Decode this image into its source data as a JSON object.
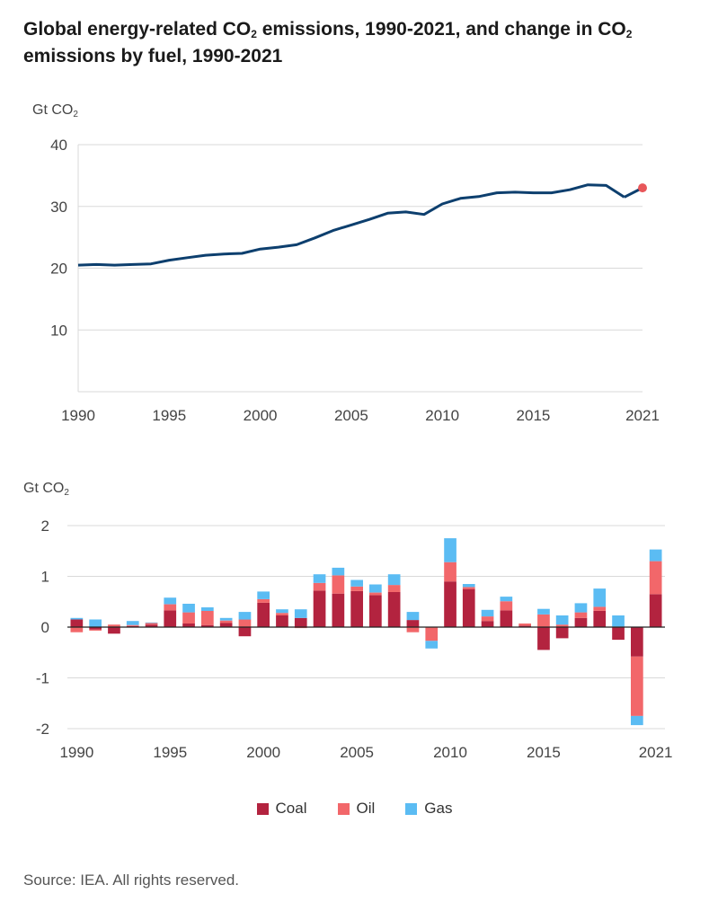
{
  "title_parts": {
    "a": "Global energy-related CO",
    "sub1": "2",
    "b": " emissions, 1990-2021, and change in CO",
    "sub2": "2",
    "c": " emissions by fuel, 1990-2021"
  },
  "source": "Source: IEA. All rights reserved.",
  "colors": {
    "line": "#0d3f6e",
    "point_2021": "#e8575a",
    "coal": "#b3233f",
    "oil": "#f2676a",
    "gas": "#5bbcf3",
    "grid": "#d9d9d9"
  },
  "chart_data": [
    {
      "type": "line",
      "ylabel_main": "Gt CO",
      "ylabel_sub": "2",
      "ylim": [
        0,
        40
      ],
      "yticks": [
        10,
        20,
        30,
        40
      ],
      "xticks": [
        1990,
        1995,
        2000,
        2005,
        2010,
        2015,
        2021
      ],
      "x": [
        1990,
        1991,
        1992,
        1993,
        1994,
        1995,
        1996,
        1997,
        1998,
        1999,
        2000,
        2001,
        2002,
        2003,
        2004,
        2005,
        2006,
        2007,
        2008,
        2009,
        2010,
        2011,
        2012,
        2013,
        2014,
        2015,
        2016,
        2017,
        2018,
        2019,
        2020
      ],
      "values": [
        20.5,
        20.6,
        20.5,
        20.6,
        20.7,
        21.3,
        21.7,
        22.1,
        22.3,
        22.4,
        23.1,
        23.4,
        23.8,
        24.9,
        26.1,
        27.0,
        27.9,
        28.9,
        29.1,
        28.7,
        30.4,
        31.3,
        31.6,
        32.2,
        32.3,
        32.2,
        32.2,
        32.7,
        33.5,
        33.4,
        31.5
      ],
      "highlight": {
        "x": 2021,
        "value": 33.0
      },
      "grid": true
    },
    {
      "type": "bar",
      "stacked": true,
      "ylabel_main": "Gt CO",
      "ylabel_sub": "2",
      "ylim": [
        -2,
        2
      ],
      "yticks": [
        2,
        1,
        0,
        -1,
        -2
      ],
      "xticks": [
        1990,
        1995,
        2000,
        2005,
        2010,
        2015,
        2021
      ],
      "categories": [
        1990,
        1991,
        1992,
        1993,
        1994,
        1995,
        1996,
        1997,
        1998,
        1999,
        2000,
        2001,
        2002,
        2003,
        2004,
        2005,
        2006,
        2007,
        2008,
        2009,
        2010,
        2011,
        2012,
        2013,
        2014,
        2015,
        2016,
        2017,
        2018,
        2019,
        2020,
        2021
      ],
      "series": [
        {
          "name": "Coal",
          "values": [
            0.15,
            -0.05,
            -0.13,
            0.02,
            0.05,
            0.33,
            0.07,
            0.04,
            0.08,
            -0.18,
            0.48,
            0.23,
            0.18,
            0.72,
            0.66,
            0.71,
            0.63,
            0.69,
            0.14,
            0.0,
            0.9,
            0.75,
            0.12,
            0.33,
            0.03,
            -0.45,
            -0.22,
            0.18,
            0.32,
            -0.25,
            -0.58,
            0.65
          ]
        },
        {
          "name": "Oil",
          "values": [
            -0.1,
            -0.02,
            0.05,
            0.02,
            0.03,
            0.12,
            0.22,
            0.28,
            0.05,
            0.15,
            0.07,
            0.05,
            -0.02,
            0.15,
            0.36,
            0.09,
            0.05,
            0.14,
            -0.1,
            -0.27,
            0.38,
            0.04,
            0.09,
            0.18,
            0.04,
            0.25,
            0.05,
            0.11,
            0.08,
            0.01,
            -1.17,
            0.65
          ]
        },
        {
          "name": "Gas",
          "values": [
            0.03,
            0.15,
            0.0,
            0.08,
            0.01,
            0.13,
            0.17,
            0.07,
            0.05,
            0.15,
            0.15,
            0.07,
            0.17,
            0.17,
            0.15,
            0.13,
            0.16,
            0.21,
            0.16,
            -0.15,
            0.47,
            0.06,
            0.13,
            0.09,
            0.0,
            0.11,
            0.18,
            0.18,
            0.36,
            0.22,
            -0.18,
            0.23
          ]
        }
      ],
      "grid": true
    }
  ],
  "legend": [
    {
      "label": "Coal",
      "color": "#b3233f"
    },
    {
      "label": "Oil",
      "color": "#f2676a"
    },
    {
      "label": "Gas",
      "color": "#5bbcf3"
    }
  ]
}
